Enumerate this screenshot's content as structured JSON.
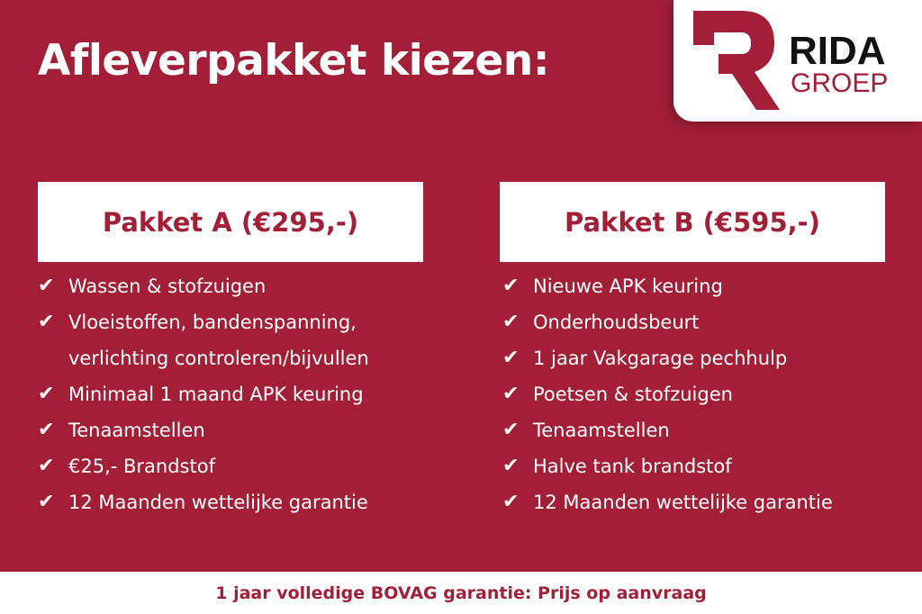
{
  "title": "Afleverpakket kiezen:",
  "logo": {
    "text": "RIDA",
    "subtext": "GROEP",
    "brand_color": "#a31f38"
  },
  "colors": {
    "background": "#a31f38",
    "panel": "#ffffff"
  },
  "packages": [
    {
      "label": "Pakket A (€295,-)",
      "items": [
        "Wassen & stofzuigen",
        "Vloeistoffen, bandenspanning, verlichting controleren/bijvullen",
        "Minimaal 1 maand APK keuring",
        "Tenaamstellen",
        "€25,- Brandstof",
        "12 Maanden wettelijke garantie"
      ]
    },
    {
      "label": "Pakket B (€595,-)",
      "items": [
        "Nieuwe APK keuring",
        "Onderhoudsbeurt",
        "1 jaar Vakgarage pechhulp",
        "Poetsen & stofzuigen",
        "Tenaamstellen",
        "Halve tank brandstof",
        "12 Maanden wettelijke garantie"
      ]
    }
  ],
  "footer": "1 jaar volledige BOVAG garantie: Prijs op aanvraag",
  "icons": {
    "check": "checkmark-icon"
  }
}
